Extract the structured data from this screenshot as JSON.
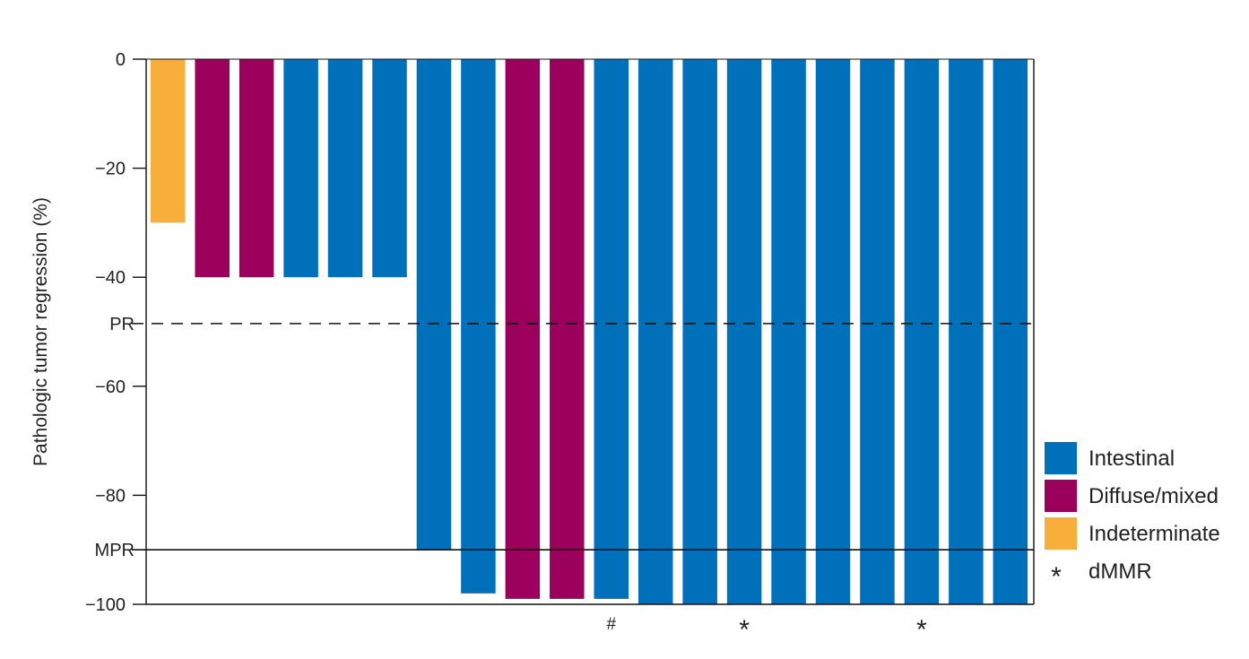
{
  "chart_data": {
    "type": "bar",
    "ylabel": "Pathologic tumor regression (%)",
    "ylim": [
      -100,
      0
    ],
    "yticks": [
      {
        "value": 0,
        "label": "0"
      },
      {
        "value": -20,
        "label": "−20"
      },
      {
        "value": -40,
        "label": "−40"
      },
      {
        "value": -60,
        "label": "−60"
      },
      {
        "value": -80,
        "label": "−80"
      },
      {
        "value": -100,
        "label": "−100"
      }
    ],
    "reference_lines": [
      {
        "label": "PR",
        "value": -48.5,
        "style": "dashed"
      },
      {
        "label": "MPR",
        "value": -90,
        "style": "solid"
      }
    ],
    "colors": {
      "Intestinal": "#0070BB",
      "Diffuse/mixed": "#9B005C",
      "Indeterminate": "#F8AE3B"
    },
    "bars": [
      {
        "value": -30,
        "group": "Indeterminate",
        "marker": ""
      },
      {
        "value": -40,
        "group": "Diffuse/mixed",
        "marker": ""
      },
      {
        "value": -40,
        "group": "Diffuse/mixed",
        "marker": ""
      },
      {
        "value": -40,
        "group": "Intestinal",
        "marker": ""
      },
      {
        "value": -40,
        "group": "Intestinal",
        "marker": ""
      },
      {
        "value": -40,
        "group": "Intestinal",
        "marker": ""
      },
      {
        "value": -90,
        "group": "Intestinal",
        "marker": ""
      },
      {
        "value": -98,
        "group": "Intestinal",
        "marker": ""
      },
      {
        "value": -99,
        "group": "Diffuse/mixed",
        "marker": ""
      },
      {
        "value": -99,
        "group": "Diffuse/mixed",
        "marker": ""
      },
      {
        "value": -99,
        "group": "Intestinal",
        "marker": "#"
      },
      {
        "value": -100,
        "group": "Intestinal",
        "marker": ""
      },
      {
        "value": -100,
        "group": "Intestinal",
        "marker": ""
      },
      {
        "value": -100,
        "group": "Intestinal",
        "marker": "*"
      },
      {
        "value": -100,
        "group": "Intestinal",
        "marker": ""
      },
      {
        "value": -100,
        "group": "Intestinal",
        "marker": ""
      },
      {
        "value": -100,
        "group": "Intestinal",
        "marker": ""
      },
      {
        "value": -100,
        "group": "Intestinal",
        "marker": "*"
      },
      {
        "value": -100,
        "group": "Intestinal",
        "marker": ""
      },
      {
        "value": -100,
        "group": "Intestinal",
        "marker": ""
      }
    ],
    "legend": {
      "position": "bottom-right",
      "entries": [
        {
          "label": "Intestinal",
          "swatch": "#0070BB"
        },
        {
          "label": "Diffuse/mixed",
          "swatch": "#9B005C"
        },
        {
          "label": "Indeterminate",
          "swatch": "#F8AE3B"
        },
        {
          "label": "dMMR",
          "symbol": "*"
        }
      ]
    }
  }
}
